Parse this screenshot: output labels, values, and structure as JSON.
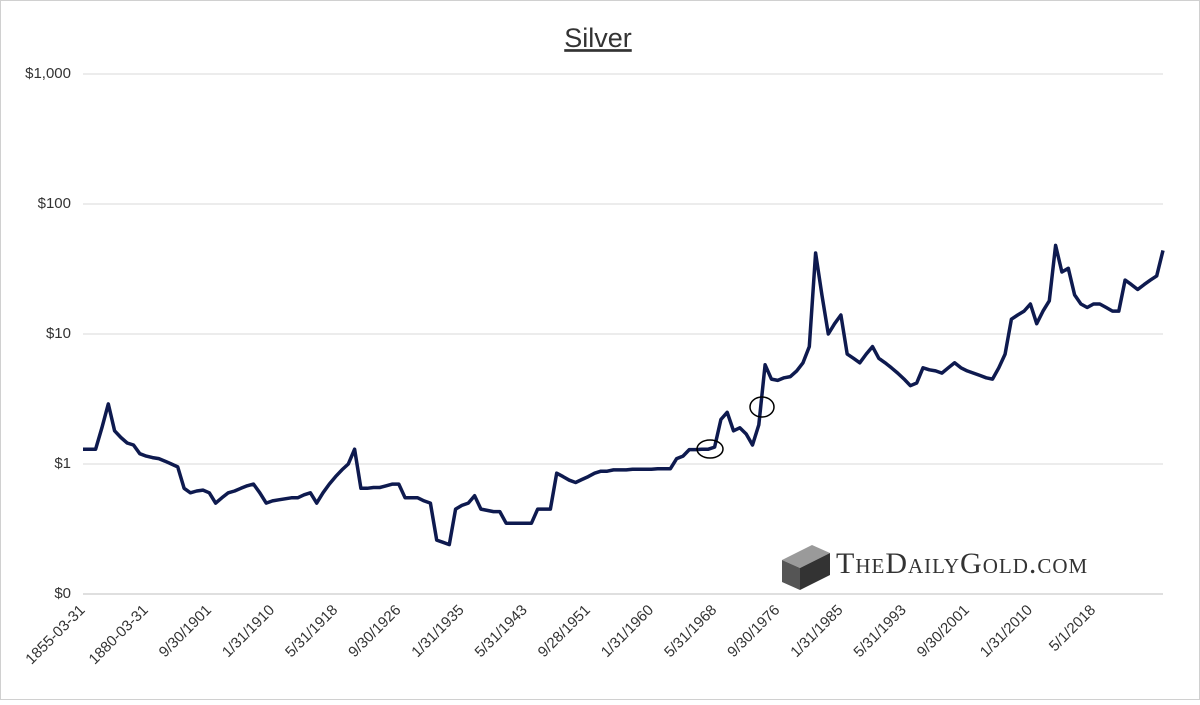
{
  "chart_data": {
    "type": "line",
    "title": "Silver",
    "watermark": "TheDailyGold.com",
    "log_scale": true,
    "grid": true,
    "ylim": [
      0.1,
      1000
    ],
    "yticks": [
      {
        "value": 0.1,
        "label": "$0"
      },
      {
        "value": 1,
        "label": "$1"
      },
      {
        "value": 10,
        "label": "$10"
      },
      {
        "value": 100,
        "label": "$100"
      },
      {
        "value": 1000,
        "label": "$1,000"
      }
    ],
    "categories": [
      "1855-03-31",
      null,
      null,
      null,
      null,
      null,
      null,
      null,
      null,
      null,
      "1880-03-31",
      null,
      null,
      null,
      null,
      null,
      null,
      null,
      null,
      null,
      "9/30/1901",
      null,
      null,
      null,
      null,
      null,
      null,
      null,
      null,
      null,
      "1/31/1910",
      null,
      null,
      null,
      null,
      null,
      null,
      null,
      null,
      null,
      "5/31/1918",
      null,
      null,
      null,
      null,
      null,
      null,
      null,
      null,
      null,
      "9/30/1926",
      null,
      null,
      null,
      null,
      null,
      null,
      null,
      null,
      null,
      "1/31/1935",
      null,
      null,
      null,
      null,
      null,
      null,
      null,
      null,
      null,
      "5/31/1943",
      null,
      null,
      null,
      null,
      null,
      null,
      null,
      null,
      null,
      "9/28/1951",
      null,
      null,
      null,
      null,
      null,
      null,
      null,
      null,
      null,
      "1/31/1960",
      null,
      null,
      null,
      null,
      null,
      null,
      null,
      null,
      null,
      "5/31/1968",
      null,
      null,
      null,
      null,
      null,
      null,
      null,
      null,
      null,
      "9/30/1976",
      null,
      null,
      null,
      null,
      null,
      null,
      null,
      null,
      null,
      "1/31/1985",
      null,
      null,
      null,
      null,
      null,
      null,
      null,
      null,
      null,
      "5/31/1993",
      null,
      null,
      null,
      null,
      null,
      null,
      null,
      null,
      null,
      "9/30/2001",
      null,
      null,
      null,
      null,
      null,
      null,
      null,
      null,
      null,
      "1/31/2010",
      null,
      null,
      null,
      null,
      null,
      null,
      null,
      null,
      null,
      "5/1/2018",
      null,
      null,
      null,
      null,
      null,
      null,
      null,
      null,
      null,
      null,
      null
    ],
    "series": [
      {
        "name": "Silver",
        "color": "#0e1a4f",
        "values": [
          1.3,
          1.3,
          1.3,
          1.9,
          2.9,
          1.8,
          1.6,
          1.45,
          1.4,
          1.2,
          1.15,
          1.12,
          1.1,
          1.05,
          1.0,
          0.95,
          0.65,
          0.6,
          0.62,
          0.63,
          0.6,
          0.5,
          0.55,
          0.6,
          0.62,
          0.65,
          0.68,
          0.7,
          0.6,
          0.5,
          0.52,
          0.53,
          0.54,
          0.55,
          0.55,
          0.58,
          0.6,
          0.5,
          0.6,
          0.7,
          0.8,
          0.9,
          1.0,
          1.3,
          0.65,
          0.65,
          0.66,
          0.66,
          0.68,
          0.7,
          0.7,
          0.55,
          0.55,
          0.55,
          0.52,
          0.5,
          0.26,
          0.25,
          0.24,
          0.45,
          0.48,
          0.5,
          0.57,
          0.45,
          0.44,
          0.43,
          0.43,
          0.35,
          0.35,
          0.35,
          0.35,
          0.35,
          0.45,
          0.45,
          0.45,
          0.85,
          0.8,
          0.75,
          0.72,
          0.76,
          0.8,
          0.85,
          0.88,
          0.88,
          0.9,
          0.9,
          0.9,
          0.91,
          0.91,
          0.91,
          0.91,
          0.92,
          0.92,
          0.92,
          1.1,
          1.15,
          1.29,
          1.29,
          1.3,
          1.3,
          1.35,
          2.2,
          2.5,
          1.8,
          1.9,
          1.7,
          1.4,
          2.0,
          5.8,
          4.5,
          4.4,
          4.6,
          4.7,
          5.2,
          6.0,
          8,
          42,
          20,
          10,
          12,
          14,
          7,
          6.5,
          6,
          7,
          8,
          6.5,
          6,
          5.5,
          5,
          4.5,
          4,
          4.2,
          5.5,
          5.3,
          5.2,
          5,
          5.5,
          6,
          5.5,
          5.2,
          5,
          4.8,
          4.6,
          4.5,
          5.5,
          7,
          13,
          14,
          15,
          17,
          12,
          15,
          18,
          48,
          30,
          32,
          20,
          17,
          16,
          17,
          17,
          16,
          15,
          15,
          26,
          24,
          22,
          24,
          26,
          28,
          44
        ]
      }
    ]
  }
}
